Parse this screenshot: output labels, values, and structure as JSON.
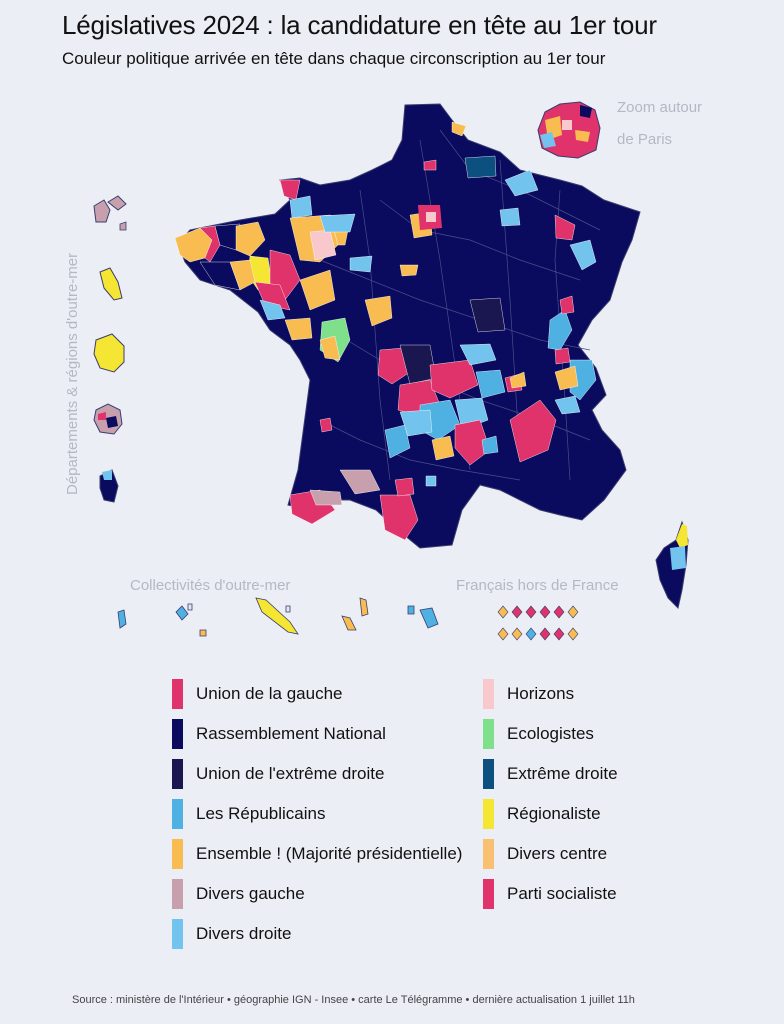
{
  "title": "Législatives 2024 : la candidature en tête au 1er tour",
  "subtitle": "Couleur politique arrivée en tête dans chaque circonscription au 1er tour",
  "zoom_label": "Zoom autour de Paris",
  "side_label": "Départements & régions d'outre-mer",
  "collectivites_label": "Collectivités d'outre-mer",
  "hors_france_label": "Français hors de France",
  "colors": {
    "union_gauche": "#e0336b",
    "rn": "#0a0a5e",
    "uxd": "#1a1650",
    "lr": "#4fb0e2",
    "ensemble": "#f8bc50",
    "divers_gauche": "#c8a0ad",
    "divers_droite": "#72c4ee",
    "horizons": "#f8c8cc",
    "ecologistes": "#7ee08a",
    "extreme_droite": "#0c5080",
    "regionaliste": "#f5e634",
    "divers_centre": "#f8c070",
    "parti_socialiste": "#e0336b",
    "border": "#8a8fb0",
    "background": "#eceef6"
  },
  "legend": {
    "left": [
      {
        "label": "Union de la gauche",
        "color": "#e0336b",
        "icon": "square-swatch"
      },
      {
        "label": "Rassemblement National",
        "color": "#0a0a5e",
        "icon": "square-swatch"
      },
      {
        "label": "Union de l'extrême droite",
        "color": "#1a1650",
        "icon": "square-swatch"
      },
      {
        "label": "Les Républicains",
        "color": "#4fb0e2",
        "icon": "square-swatch"
      },
      {
        "label": "Ensemble ! (Majorité présidentielle)",
        "color": "#f8bc50",
        "icon": "square-swatch"
      },
      {
        "label": "Divers gauche",
        "color": "#c8a0ad",
        "icon": "square-swatch"
      },
      {
        "label": "Divers droite",
        "color": "#72c4ee",
        "icon": "square-swatch"
      }
    ],
    "right": [
      {
        "label": "Horizons",
        "color": "#f8c8cc",
        "icon": "square-swatch"
      },
      {
        "label": "Ecologistes",
        "color": "#7ee08a",
        "icon": "square-swatch"
      },
      {
        "label": "Extrême droite",
        "color": "#0c5080",
        "icon": "square-swatch"
      },
      {
        "label": "Régionaliste",
        "color": "#f5e634",
        "icon": "square-swatch"
      },
      {
        "label": "Divers centre",
        "color": "#f8c070",
        "icon": "square-swatch"
      },
      {
        "label": "Parti socialiste",
        "color": "#e0336b",
        "icon": "square-swatch"
      }
    ]
  },
  "hors_france_diamonds": [
    "ensemble",
    "union_gauche",
    "union_gauche",
    "union_gauche",
    "union_gauche",
    "ensemble",
    "ensemble",
    "ensemble",
    "lr",
    "union_gauche",
    "union_gauche",
    "ensemble"
  ],
  "source": "Source : ministère de l'Intérieur • géographie IGN - Insee • carte Le Télégramme • dernière actualisation  1 juillet 11h"
}
